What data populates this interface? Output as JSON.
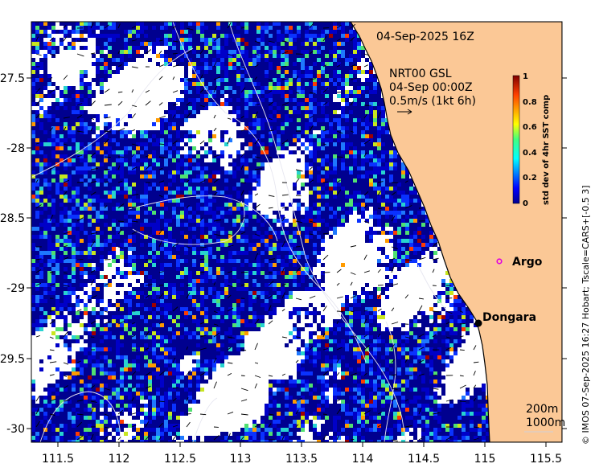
{
  "map": {
    "date_label": "04-Sep-2025 16Z",
    "current_source": "NRT00 GSL",
    "current_time": "04-Sep 00:00Z",
    "vector_scale": "0.5m/s (1kt 6h)",
    "x_ticks": [
      "111.5",
      "112",
      "112.5",
      "113",
      "113.5",
      "114",
      "114.5",
      "115",
      "115.5"
    ],
    "y_ticks": [
      "-27.5",
      "-28",
      "-28.5",
      "-29",
      "-29.5",
      "-30"
    ],
    "places": [
      {
        "name": "Argo",
        "marker": "magenta-circle"
      },
      {
        "name": "Dongara",
        "marker": "black-dot"
      }
    ],
    "contour_legend": [
      "200m",
      "1000m"
    ],
    "colorbar": {
      "label": "std dev of 4hr SST comp",
      "ticks": [
        "0",
        "0.2",
        "0.4",
        "0.6",
        "0.8",
        "1"
      ],
      "min": 0,
      "max": 1
    },
    "credit": "© IMOS 07-Sep-2025 16:27 Hobart; Tscale=CARS+[-0.5 3]",
    "colors": {
      "land": "#fbc896",
      "no_data": "#ffffff",
      "low": "#00008f",
      "mid": "#27d3d0",
      "high": "#7f0000",
      "argo": "#e000e0"
    }
  }
}
